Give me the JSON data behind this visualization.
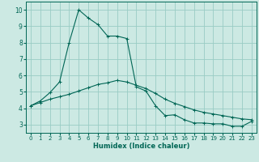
{
  "title": "",
  "xlabel": "Humidex (Indice chaleur)",
  "ylabel": "",
  "background_color": "#cce9e3",
  "grid_color": "#99ccc4",
  "line_color": "#006655",
  "xlim": [
    -0.5,
    23.5
  ],
  "ylim": [
    2.5,
    10.5
  ],
  "xticks": [
    0,
    1,
    2,
    3,
    4,
    5,
    6,
    7,
    8,
    9,
    10,
    11,
    12,
    13,
    14,
    15,
    16,
    17,
    18,
    19,
    20,
    21,
    22,
    23
  ],
  "yticks": [
    3,
    4,
    5,
    6,
    7,
    8,
    9,
    10
  ],
  "series1_x": [
    0,
    1,
    2,
    3,
    4,
    5,
    6,
    7,
    8,
    9,
    10,
    11,
    12,
    13,
    14,
    15,
    16,
    17,
    18,
    19,
    20,
    21,
    22,
    23
  ],
  "series1_y": [
    4.15,
    4.45,
    4.95,
    5.6,
    8.0,
    10.0,
    9.5,
    9.1,
    8.4,
    8.4,
    8.25,
    5.3,
    5.05,
    4.15,
    3.55,
    3.6,
    3.3,
    3.1,
    3.1,
    3.05,
    3.05,
    2.9,
    2.9,
    3.2
  ],
  "series2_x": [
    0,
    1,
    2,
    3,
    4,
    5,
    6,
    7,
    8,
    9,
    10,
    11,
    12,
    13,
    14,
    15,
    16,
    17,
    18,
    19,
    20,
    21,
    22,
    23
  ],
  "series2_y": [
    4.15,
    4.35,
    4.55,
    4.7,
    4.85,
    5.05,
    5.25,
    5.45,
    5.55,
    5.7,
    5.6,
    5.4,
    5.2,
    4.9,
    4.55,
    4.3,
    4.1,
    3.9,
    3.75,
    3.65,
    3.55,
    3.45,
    3.35,
    3.3
  ],
  "xlabel_fontsize": 6.0,
  "tick_fontsize_x": 5.0,
  "tick_fontsize_y": 5.5
}
